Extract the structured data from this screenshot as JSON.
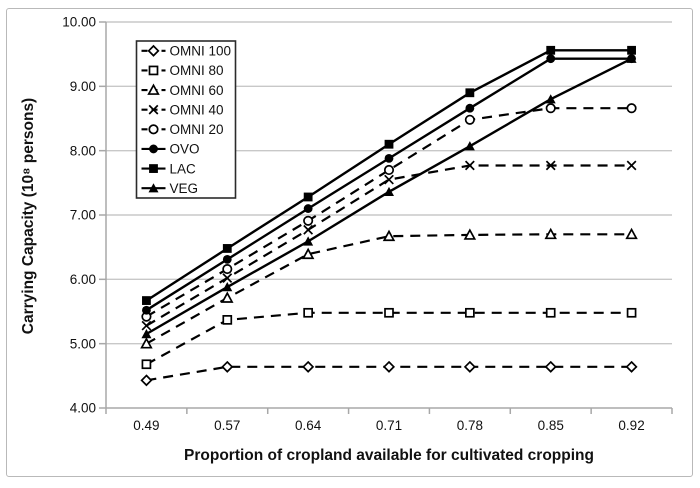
{
  "figure": {
    "background_color": "#ffffff",
    "border_color": "#b9b9b9"
  },
  "chart_data": {
    "type": "line",
    "title": "",
    "xlabel": "Proportion of cropland available for cultivated cropping",
    "ylabel": "Carrying Capacity (10⁸ persons)",
    "x_tick_labels": [
      "0.49",
      "0.57",
      "0.64",
      "0.71",
      "0.78",
      "0.85",
      "0.92"
    ],
    "y_tick_labels": [
      "4.00",
      "5.00",
      "6.00",
      "7.00",
      "8.00",
      "9.00",
      "10.00"
    ],
    "y_tick_values": [
      4,
      5,
      6,
      7,
      8,
      9,
      10
    ],
    "ylim": [
      4.0,
      10.0
    ],
    "grid": "horizontal",
    "legend_position": "top-left-inside",
    "categories": [
      0.49,
      0.57,
      0.64,
      0.71,
      0.78,
      0.85,
      0.92
    ],
    "series": [
      {
        "name": "OMNI 100",
        "line": "dashed",
        "marker": "diamond-open",
        "values": [
          4.43,
          4.64,
          4.64,
          4.64,
          4.64,
          4.64,
          4.64
        ]
      },
      {
        "name": "OMNI 80",
        "line": "dashed",
        "marker": "square-open",
        "values": [
          4.68,
          5.37,
          5.48,
          5.48,
          5.48,
          5.48,
          5.48
        ]
      },
      {
        "name": "OMNI 60",
        "line": "dashed",
        "marker": "triangle-open",
        "values": [
          5.0,
          5.71,
          6.39,
          6.67,
          6.69,
          6.7,
          6.7
        ]
      },
      {
        "name": "OMNI 40",
        "line": "dashed",
        "marker": "x",
        "values": [
          5.28,
          6.02,
          6.77,
          7.55,
          7.77,
          7.77,
          7.77
        ]
      },
      {
        "name": "OMNI 20",
        "line": "dashed",
        "marker": "circle-open",
        "values": [
          5.42,
          6.16,
          6.91,
          7.7,
          8.48,
          8.66,
          8.66
        ]
      },
      {
        "name": "OVO",
        "line": "solid",
        "marker": "circle-filled",
        "values": [
          5.52,
          6.31,
          7.1,
          7.88,
          8.66,
          9.43,
          9.43
        ]
      },
      {
        "name": "LAC",
        "line": "solid",
        "marker": "square-filled",
        "values": [
          5.67,
          6.48,
          7.28,
          8.1,
          8.9,
          9.56,
          9.56
        ]
      },
      {
        "name": "VEG",
        "line": "solid",
        "marker": "triangle-filled",
        "values": [
          5.15,
          5.88,
          6.59,
          7.36,
          8.07,
          8.8,
          9.43
        ]
      }
    ],
    "series_color": "#000000",
    "gridline_color": "#c8c8c8",
    "axis_color": "#a8a8a8",
    "text_color": "#111111",
    "legend_border_color": "#2b2b2b"
  }
}
